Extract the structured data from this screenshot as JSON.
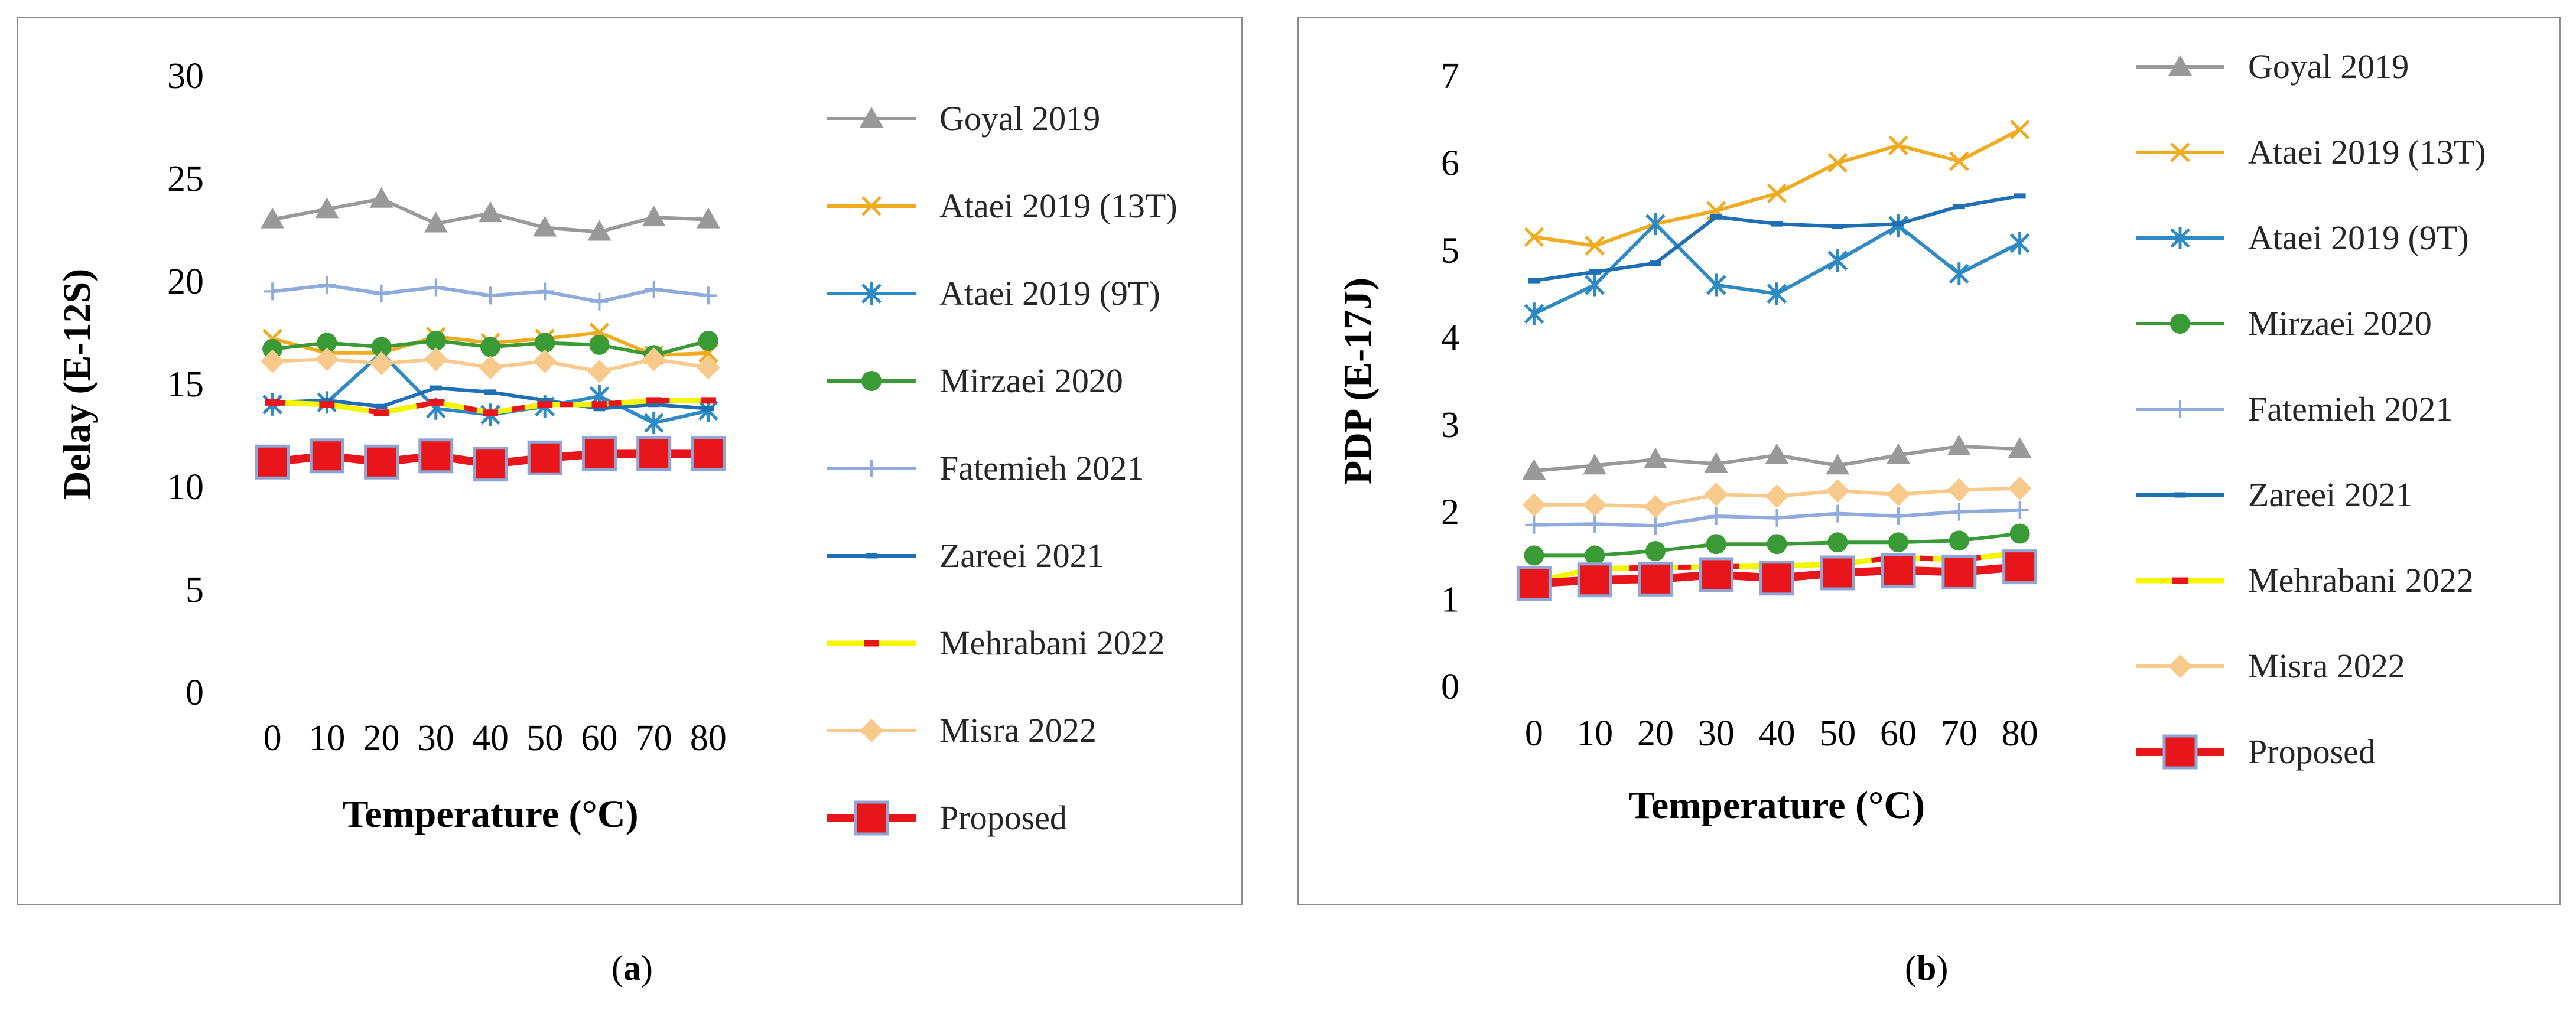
{
  "panels": [
    {
      "caption_letter": "a"
    },
    {
      "caption_letter": "b"
    }
  ],
  "chart_data": [
    {
      "type": "line",
      "xlabel": "Temperature (°C)",
      "ylabel": "Delay (E-12S)",
      "ylim": [
        0,
        30
      ],
      "yticks": [
        0,
        5,
        10,
        15,
        20,
        25,
        30
      ],
      "categories": [
        "0",
        "10",
        "20",
        "30",
        "40",
        "50",
        "60",
        "70",
        "80"
      ],
      "legend_position": "right",
      "series": [
        {
          "name": "Goyal 2019",
          "color": "#999999",
          "marker": "triangle",
          "values": [
            23.0,
            23.5,
            24.0,
            22.8,
            23.3,
            22.6,
            22.4,
            23.1,
            23.0
          ]
        },
        {
          "name": "Ataei 2019 (13T)",
          "color": "#f0ab1f",
          "marker": "x",
          "values": [
            17.2,
            16.5,
            16.5,
            17.3,
            17.0,
            17.2,
            17.5,
            16.4,
            16.5
          ]
        },
        {
          "name": "Ataei 2019 (9T)",
          "color": "#2d8ac4",
          "marker": "star",
          "values": [
            14.0,
            14.1,
            16.5,
            13.8,
            13.5,
            13.9,
            14.4,
            13.1,
            13.7
          ]
        },
        {
          "name": "Mirzaei 2020",
          "color": "#3a9a36",
          "marker": "circle",
          "values": [
            16.7,
            17.0,
            16.8,
            17.1,
            16.8,
            17.0,
            16.9,
            16.4,
            17.1
          ]
        },
        {
          "name": "Fatemieh 2021",
          "color": "#8faadc",
          "marker": "plus",
          "values": [
            19.5,
            19.8,
            19.4,
            19.7,
            19.3,
            19.5,
            19.0,
            19.6,
            19.3
          ]
        },
        {
          "name": "Zareei 2021",
          "color": "#1f6fb4",
          "marker": "dash",
          "values": [
            14.1,
            14.2,
            13.9,
            14.8,
            14.6,
            14.2,
            13.8,
            14.0,
            13.8
          ]
        },
        {
          "name": "Mehrabani 2022",
          "color": "#f5f500",
          "marker": "reddash",
          "values": [
            14.1,
            14.0,
            13.6,
            14.1,
            13.6,
            14.0,
            14.0,
            14.2,
            14.2
          ]
        },
        {
          "name": "Misra 2022",
          "color": "#f7c98a",
          "marker": "diamond",
          "values": [
            16.1,
            16.2,
            16.0,
            16.2,
            15.8,
            16.1,
            15.6,
            16.2,
            15.8
          ]
        },
        {
          "name": "Proposed",
          "color": "#e8161b",
          "marker": "square",
          "values": [
            11.2,
            11.5,
            11.2,
            11.5,
            11.1,
            11.4,
            11.6,
            11.6,
            11.6
          ]
        }
      ]
    },
    {
      "type": "line",
      "xlabel": "Temperature (°C)",
      "ylabel": "PDP (E-17J)",
      "ylim": [
        0,
        7
      ],
      "yticks": [
        0,
        1,
        2,
        3,
        4,
        5,
        6,
        7
      ],
      "categories": [
        "0",
        "10",
        "20",
        "30",
        "40",
        "50",
        "60",
        "70",
        "80"
      ],
      "legend_position": "right",
      "series": [
        {
          "name": "Goyal 2019",
          "color": "#999999",
          "marker": "triangle",
          "values": [
            2.47,
            2.53,
            2.6,
            2.55,
            2.65,
            2.53,
            2.65,
            2.75,
            2.72
          ]
        },
        {
          "name": "Ataei 2019 (13T)",
          "color": "#f0ab1f",
          "marker": "x",
          "values": [
            5.15,
            5.05,
            5.3,
            5.45,
            5.65,
            6.0,
            6.2,
            6.02,
            6.38
          ]
        },
        {
          "name": "Ataei 2019 (9T)",
          "color": "#2d8ac4",
          "marker": "star",
          "values": [
            4.27,
            4.6,
            5.3,
            4.6,
            4.5,
            4.88,
            5.28,
            4.73,
            5.08
          ]
        },
        {
          "name": "Mirzaei 2020",
          "color": "#3a9a36",
          "marker": "circle",
          "values": [
            1.5,
            1.5,
            1.55,
            1.63,
            1.63,
            1.65,
            1.65,
            1.67,
            1.75
          ]
        },
        {
          "name": "Fatemieh 2021",
          "color": "#8faadc",
          "marker": "plus",
          "values": [
            1.85,
            1.86,
            1.84,
            1.95,
            1.93,
            1.98,
            1.95,
            2.0,
            2.02
          ]
        },
        {
          "name": "Zareei 2021",
          "color": "#1f6fb4",
          "marker": "dash",
          "values": [
            4.65,
            4.75,
            4.85,
            5.38,
            5.3,
            5.27,
            5.3,
            5.5,
            5.62
          ]
        },
        {
          "name": "Mehrabani 2022",
          "color": "#f5f500",
          "marker": "reddash",
          "values": [
            1.2,
            1.35,
            1.36,
            1.37,
            1.38,
            1.4,
            1.48,
            1.45,
            1.53
          ]
        },
        {
          "name": "Misra 2022",
          "color": "#f7c98a",
          "marker": "diamond",
          "values": [
            2.08,
            2.08,
            2.06,
            2.2,
            2.18,
            2.24,
            2.2,
            2.25,
            2.27
          ]
        },
        {
          "name": "Proposed",
          "color": "#e8161b",
          "marker": "square",
          "values": [
            1.18,
            1.22,
            1.23,
            1.28,
            1.24,
            1.3,
            1.33,
            1.31,
            1.37
          ]
        }
      ]
    }
  ]
}
